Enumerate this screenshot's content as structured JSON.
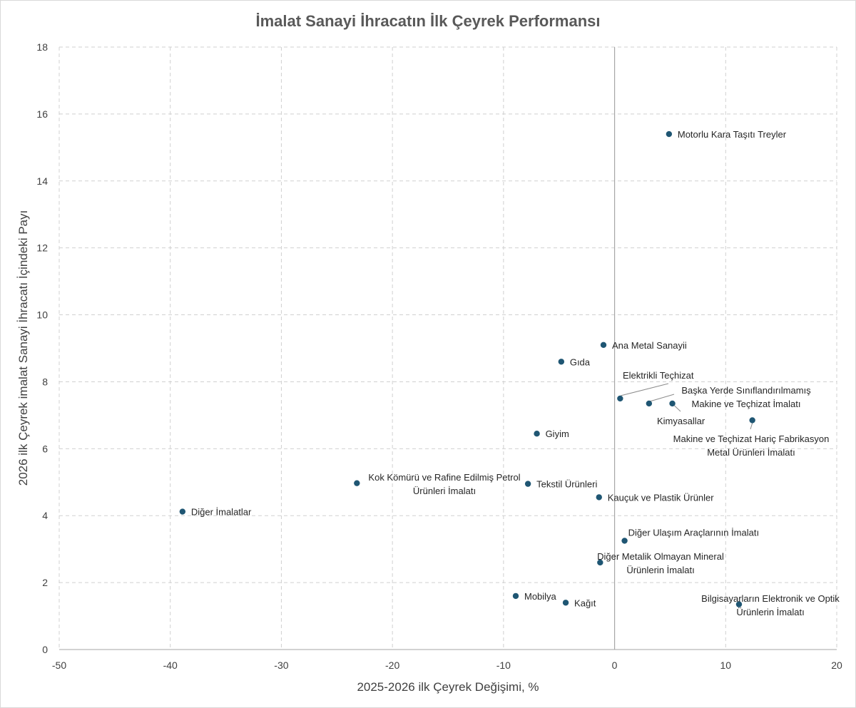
{
  "chart_data": {
    "type": "scatter",
    "title": "İmalat Sanayi İhracatın İlk Çeyrek Performansı",
    "xlabel": "2025-2026  ilk Çeyrek Değişimi, %",
    "ylabel": "2026 ilk Çeyrek imalat Sanayi İhracatı İçindeki Payı",
    "xlim": [
      -50,
      20
    ],
    "ylim": [
      0,
      18
    ],
    "xticks": [
      -50,
      -40,
      -30,
      -20,
      -10,
      0,
      10,
      20
    ],
    "yticks": [
      0,
      2,
      4,
      6,
      8,
      10,
      12,
      14,
      16,
      18
    ],
    "grid": true,
    "legend": "none",
    "point_color": "#1f5673",
    "points": [
      {
        "label": [
          "Motorlu Kara Taşıtı Treyler"
        ],
        "x": 4.9,
        "y": 15.4
      },
      {
        "label": [
          "Ana Metal Sanayii"
        ],
        "x": -1.0,
        "y": 9.1
      },
      {
        "label": [
          "Gıda"
        ],
        "x": -4.8,
        "y": 8.6
      },
      {
        "label": [
          "Elektrikli Teçhizat"
        ],
        "x": 0.5,
        "y": 7.5
      },
      {
        "label": [
          "Başka Yerde Sınıflandırılmamış",
          "Makine ve Teçhizat İmalatı"
        ],
        "x": 3.1,
        "y": 7.35
      },
      {
        "label": [
          "Kimyasallar"
        ],
        "x": 5.2,
        "y": 7.35
      },
      {
        "label": [
          "Makine ve Teçhizat Hariç Fabrikasyon",
          "Metal Ürünleri İmalatı"
        ],
        "x": 12.4,
        "y": 6.85
      },
      {
        "label": [
          "Giyim"
        ],
        "x": -7.0,
        "y": 6.45
      },
      {
        "label": [
          "Kok Kömürü ve Rafine Edilmiş Petrol",
          "Ürünleri İmalatı"
        ],
        "x": -23.2,
        "y": 4.97
      },
      {
        "label": [
          "Tekstil Ürünleri"
        ],
        "x": -7.8,
        "y": 4.95
      },
      {
        "label": [
          "Kauçuk ve Plastik Ürünler"
        ],
        "x": -1.4,
        "y": 4.55
      },
      {
        "label": [
          "Diğer İmalatlar"
        ],
        "x": -38.9,
        "y": 4.12
      },
      {
        "label": [
          "Diğer Ulaşım Araçlarının İmalatı"
        ],
        "x": 0.9,
        "y": 3.25
      },
      {
        "label": [
          "Diğer Metalik Olmayan Mineral",
          "Ürünlerin İmalatı"
        ],
        "x": -1.3,
        "y": 2.6
      },
      {
        "label": [
          "Mobilya"
        ],
        "x": -8.9,
        "y": 1.6
      },
      {
        "label": [
          "Kağıt"
        ],
        "x": -4.4,
        "y": 1.4
      },
      {
        "label": [
          "Bilgisayarların Elektronik ve Optik",
          "Ürünlerin İmalatı"
        ],
        "x": 11.2,
        "y": 1.35
      }
    ]
  }
}
